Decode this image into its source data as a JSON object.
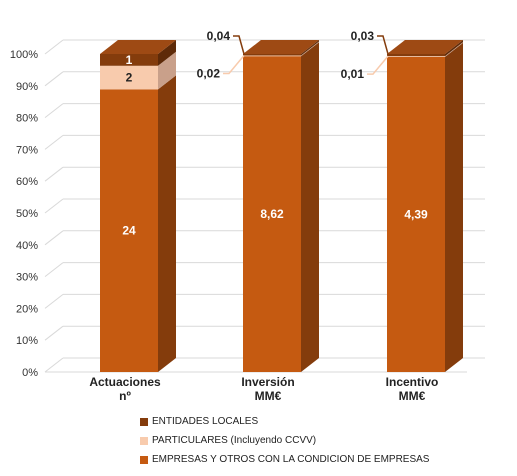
{
  "colors": {
    "empresas": "#C55A11",
    "empresas_side": "#843C0C",
    "particulares": "#F8CBAD",
    "particulares_side": "#C9A08A",
    "entidades": "#843C0C",
    "entidades_side": "#5E2A08",
    "grid": "#D9D9D9"
  },
  "chart_data": {
    "type": "bar",
    "stacked": true,
    "percent": true,
    "categories": [
      "Actuaciones\nnº",
      "Inversión\nMM€",
      "Incentivo\nMM€"
    ],
    "series": [
      {
        "name": "EMPRESAS Y OTROS CON LA CONDICION DE EMPRESAS",
        "values": [
          24,
          8.62,
          4.39
        ],
        "labels": [
          "24",
          "8,62",
          "4,39"
        ]
      },
      {
        "name": "PARTICULARES (Incluyendo CCVV)",
        "values": [
          2,
          0.02,
          0.01
        ],
        "labels": [
          "2",
          "0,02",
          "0,01"
        ]
      },
      {
        "name": "ENTIDADES LOCALES",
        "values": [
          1,
          0.04,
          0.03
        ],
        "labels": [
          "1",
          "0,04",
          "0,03"
        ]
      }
    ],
    "yticks": [
      "0%",
      "10%",
      "20%",
      "30%",
      "40%",
      "50%",
      "60%",
      "70%",
      "80%",
      "90%",
      "100%"
    ],
    "ylim": [
      0,
      100
    ],
    "grid": true,
    "legend_position": "bottom"
  }
}
